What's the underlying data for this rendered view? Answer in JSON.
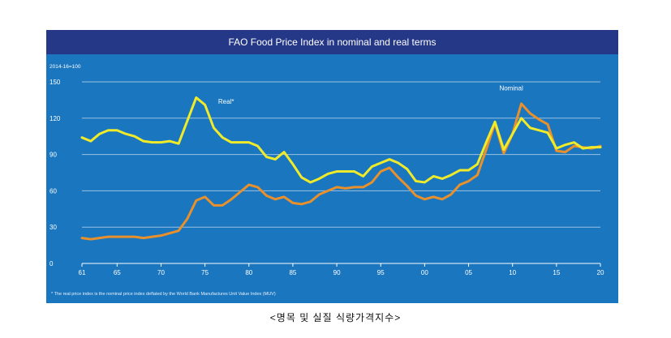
{
  "caption": "<명목 및 실질 식량가격지수>",
  "chart_data": {
    "type": "line",
    "title": "FAO Food Price Index in nominal and real terms",
    "unit_label": "2014-16=100",
    "footnote": "* The real price index is the nominal price index deflated by the World Bank Manufactures Unit Value Index (MUV)",
    "x": [
      1961,
      1962,
      1963,
      1964,
      1965,
      1966,
      1967,
      1968,
      1969,
      1970,
      1971,
      1972,
      1973,
      1974,
      1975,
      1976,
      1977,
      1978,
      1979,
      1980,
      1981,
      1982,
      1983,
      1984,
      1985,
      1986,
      1987,
      1988,
      1989,
      1990,
      1991,
      1992,
      1993,
      1994,
      1995,
      1996,
      1997,
      1998,
      1999,
      2000,
      2001,
      2002,
      2003,
      2004,
      2005,
      2006,
      2007,
      2008,
      2009,
      2010,
      2011,
      2012,
      2013,
      2014,
      2015,
      2016,
      2017,
      2018,
      2019,
      2020
    ],
    "x_tick_values": [
      1961,
      1965,
      1970,
      1975,
      1980,
      1985,
      1990,
      1995,
      2000,
      2005,
      2010,
      2015,
      2020
    ],
    "x_tick_labels": [
      "61",
      "65",
      "70",
      "75",
      "80",
      "85",
      "90",
      "95",
      "00",
      "05",
      "10",
      "15",
      "20"
    ],
    "y_ticks": [
      0,
      30,
      60,
      90,
      120,
      150
    ],
    "ylim": [
      0,
      150
    ],
    "grid": true,
    "series": [
      {
        "name": "Real*",
        "color": "#f0eb2a",
        "values": [
          104,
          101,
          107,
          110,
          110,
          107,
          105,
          101,
          100,
          100,
          101,
          99,
          118,
          137,
          131,
          112,
          104,
          100,
          100,
          100,
          97,
          88,
          86,
          92,
          82,
          71,
          67,
          70,
          74,
          76,
          76,
          76,
          72,
          80,
          83,
          86,
          83,
          78,
          68,
          67,
          72,
          70,
          73,
          77,
          77,
          82,
          100,
          117,
          94,
          107,
          120,
          112,
          110,
          108,
          95,
          98,
          100,
          95,
          96,
          96
        ]
      },
      {
        "name": "Nominal",
        "color": "#e8902c",
        "values": [
          21,
          20,
          21,
          22,
          22,
          22,
          22,
          21,
          22,
          23,
          25,
          27,
          37,
          52,
          55,
          48,
          48,
          53,
          59,
          65,
          63,
          56,
          53,
          55,
          50,
          49,
          51,
          57,
          60,
          63,
          62,
          63,
          63,
          67,
          76,
          79,
          71,
          64,
          56,
          53,
          55,
          53,
          57,
          65,
          68,
          73,
          94,
          116,
          91,
          107,
          132,
          124,
          119,
          115,
          93,
          92,
          97,
          96,
          95,
          97
        ]
      }
    ],
    "annotations": [
      {
        "text": "Real*",
        "x": 1976.5,
        "y": 132
      },
      {
        "text": "Nominal",
        "x": 2008.5,
        "y": 143
      }
    ]
  }
}
